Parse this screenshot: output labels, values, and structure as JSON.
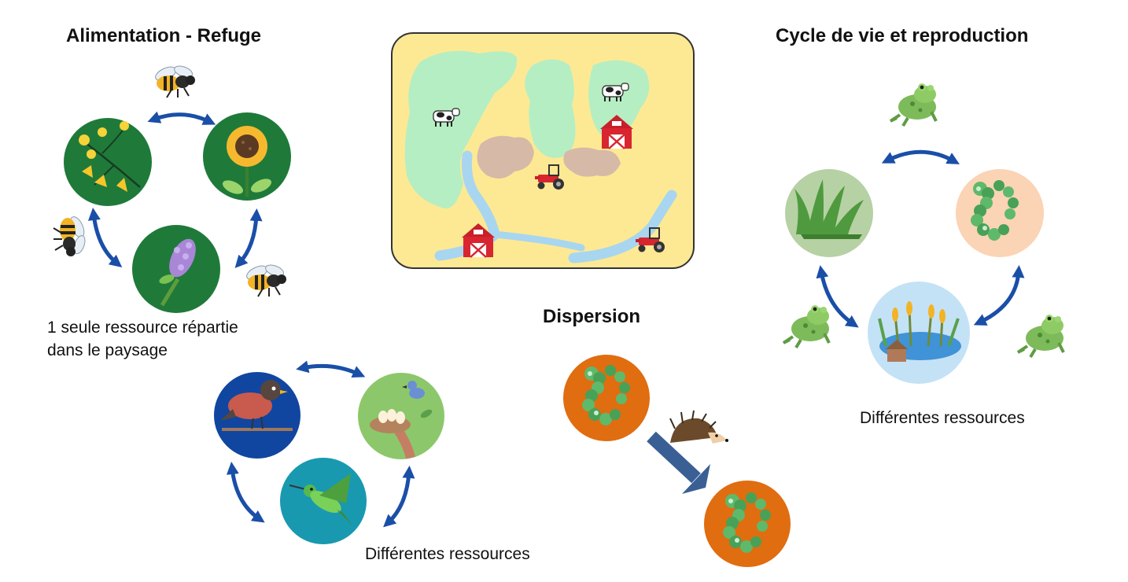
{
  "sections": {
    "food": {
      "title": "Alimentation - Refuge",
      "caption_line1": "1 seule ressource répartie",
      "caption_line2": "dans le paysage"
    },
    "birds": {
      "caption": "Différentes ressources"
    },
    "dispersal": {
      "title": "Dispersion"
    },
    "life_cycle": {
      "title": "Cycle de vie et reproduction",
      "caption": "Différentes ressources"
    }
  },
  "colors": {
    "arrow": "#1a4fa8",
    "dispersal_arrow": "#3a5f95",
    "dark_green": "#1f7a3a",
    "royal_blue": "#1046a0",
    "light_green": "#8cc86b",
    "teal": "#1899b0",
    "orange": "#e06d10",
    "sage": "#b6d1a4",
    "peach": "#fbd3b5",
    "light_blue": "#c4e2f6",
    "map_background": "#fde993",
    "meadow": "#b5eec3",
    "soil": "#d7b9a8",
    "river": "#a8d6f0"
  },
  "icons": [
    "bee-icon",
    "flower-icon",
    "sunflower-icon",
    "lavender-icon",
    "robin-icon",
    "nest-icon",
    "hummingbird-icon",
    "hedgehog-icon",
    "frog-icon",
    "grass-icon",
    "hedge-icon",
    "pond-icon",
    "cow-icon",
    "barn-icon",
    "tractor-icon"
  ]
}
